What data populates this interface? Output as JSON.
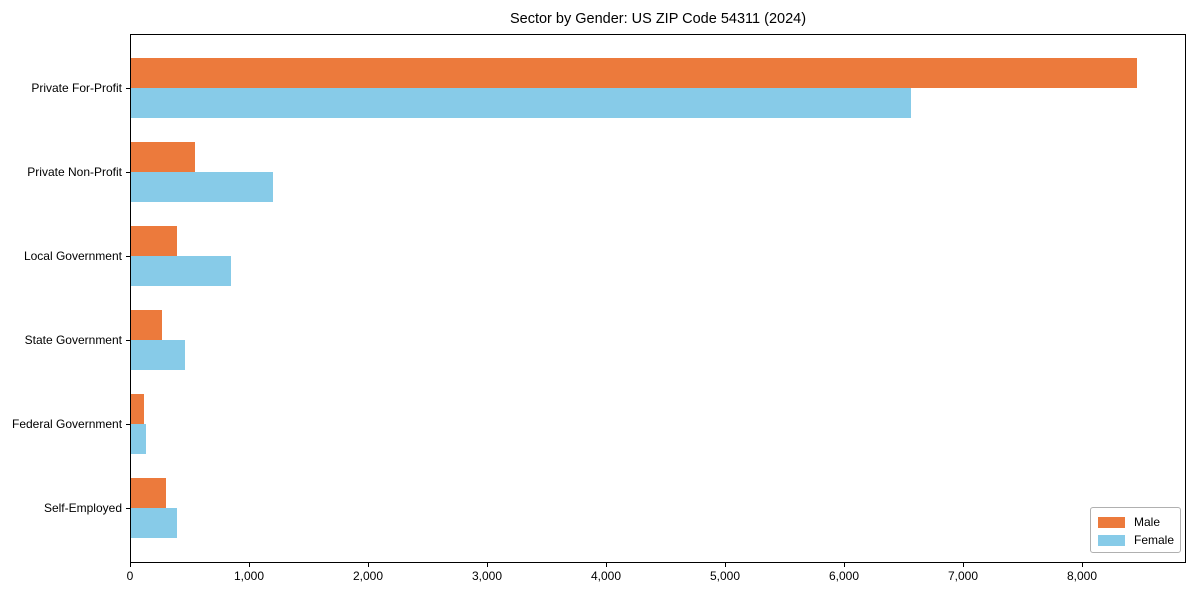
{
  "chart_data": {
    "type": "bar",
    "orientation": "horizontal",
    "title": "Sector by Gender: US ZIP Code 54311 (2024)",
    "categories": [
      "Private For-Profit",
      "Private Non-Profit",
      "Local Government",
      "State Government",
      "Federal Government",
      "Self-Employed"
    ],
    "series": [
      {
        "name": "Male",
        "color": "#ec7a3c",
        "values": [
          8450,
          540,
          390,
          260,
          110,
          290
        ]
      },
      {
        "name": "Female",
        "color": "#87cbe8",
        "values": [
          6550,
          1190,
          840,
          450,
          130,
          390
        ]
      }
    ],
    "xlabel": "",
    "ylabel": "",
    "xlim": [
      0,
      8870
    ],
    "xticks": [
      0,
      1000,
      2000,
      3000,
      4000,
      5000,
      6000,
      7000,
      8000
    ],
    "xtick_labels": [
      "0",
      "1,000",
      "2,000",
      "3,000",
      "4,000",
      "5,000",
      "6,000",
      "7,000",
      "8,000"
    ],
    "grid": false,
    "legend": {
      "position": "lower-right",
      "entries": [
        "Male",
        "Female"
      ]
    }
  }
}
